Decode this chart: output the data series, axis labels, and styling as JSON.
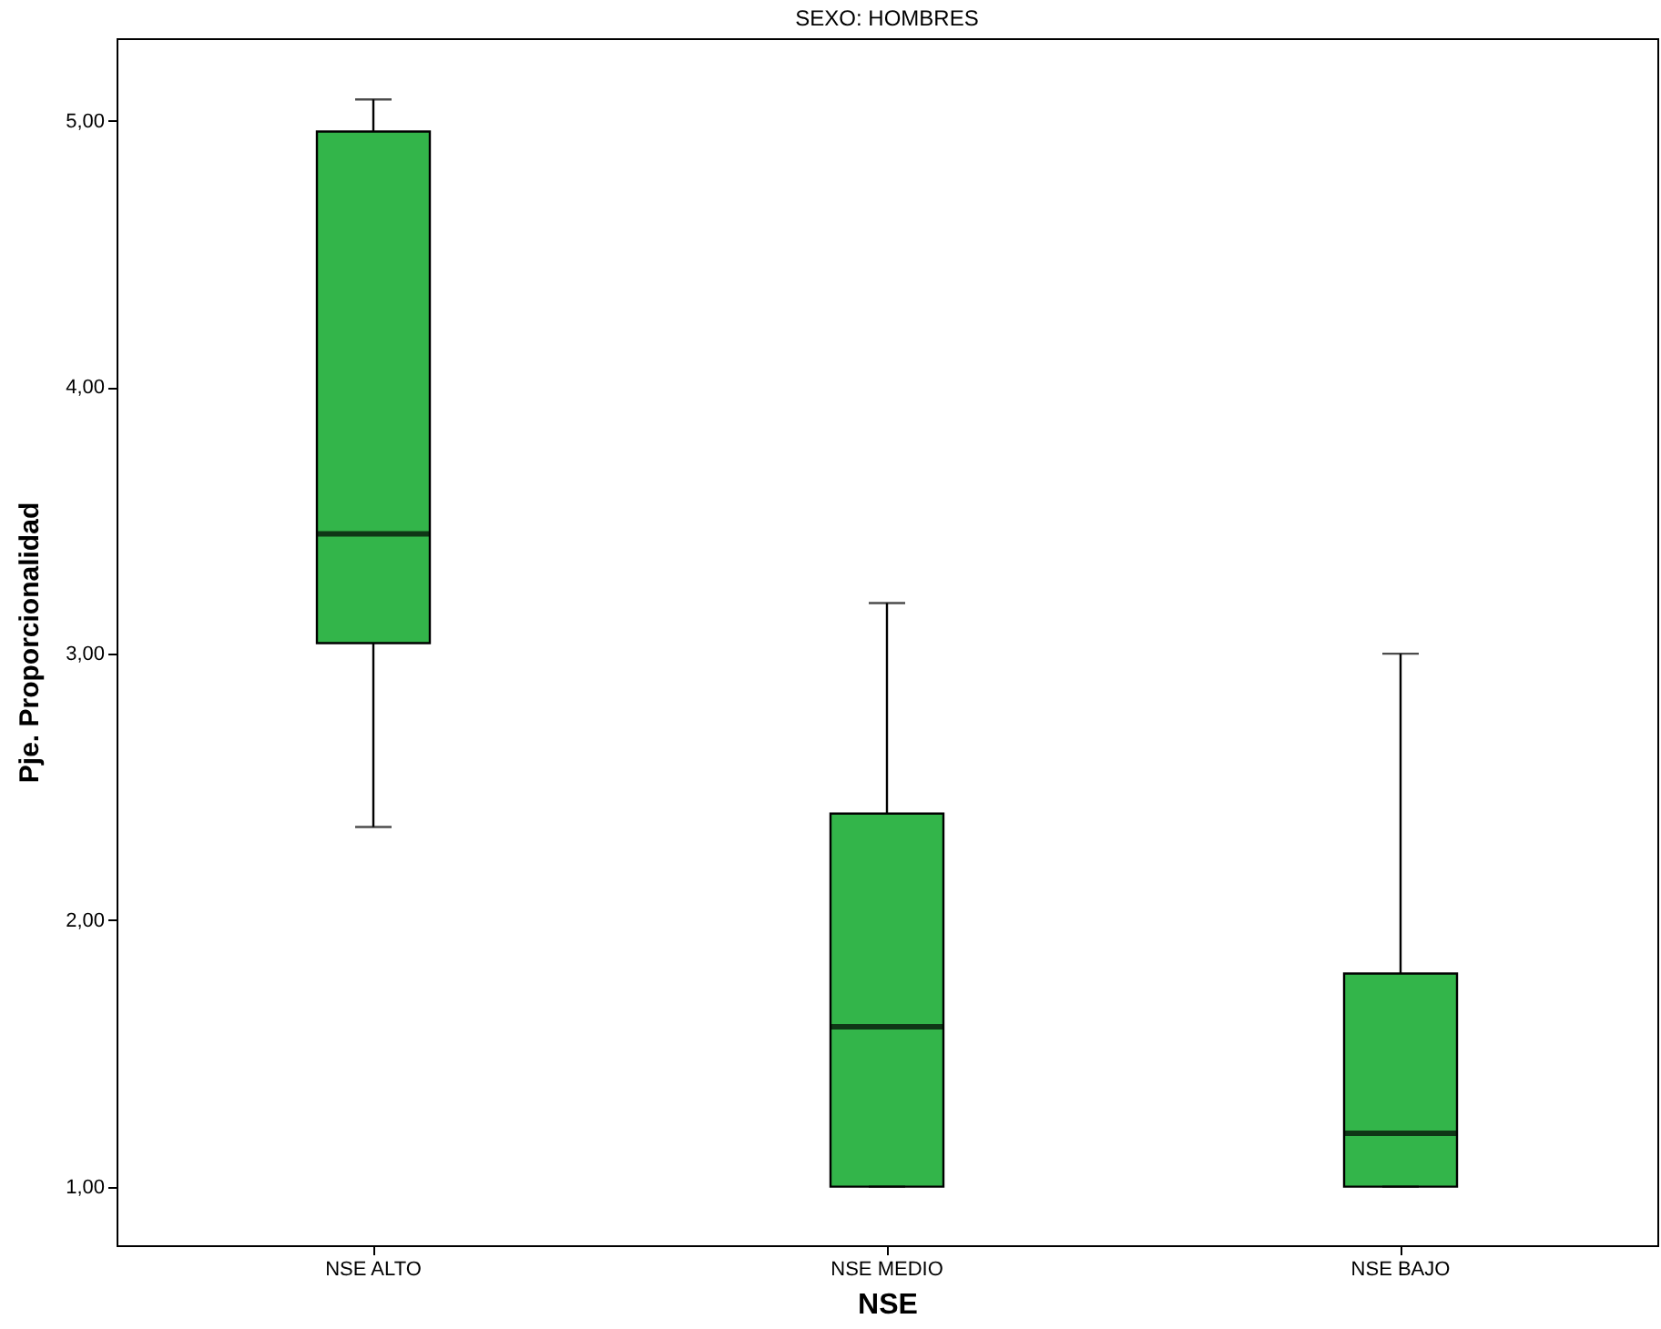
{
  "chart_data": {
    "type": "box",
    "title": "SEXO: HOMBRES",
    "xlabel": "NSE",
    "ylabel": "Pje. Proporcionalidad",
    "categories": [
      "NSE ALTO",
      "NSE MEDIO",
      "NSE BAJO"
    ],
    "series": [
      {
        "color": "#33b54a",
        "boxes": [
          {
            "low": 2.35,
            "q1": 3.04,
            "median": 3.45,
            "q3": 4.96,
            "high": 5.08
          },
          {
            "low": 1.0,
            "q1": 1.0,
            "median": 1.6,
            "q3": 2.4,
            "high": 3.19
          },
          {
            "low": 1.0,
            "q1": 1.0,
            "median": 1.2,
            "q3": 1.8,
            "high": 3.0
          }
        ]
      }
    ],
    "ylim": [
      0.78,
      5.31
    ],
    "yticks": [
      {
        "value": 1,
        "label": "1,00"
      },
      {
        "value": 2,
        "label": "2,00"
      },
      {
        "value": 3,
        "label": "3,00"
      },
      {
        "value": 4,
        "label": "4,00"
      },
      {
        "value": 5,
        "label": "5,00"
      }
    ],
    "grid": false
  }
}
